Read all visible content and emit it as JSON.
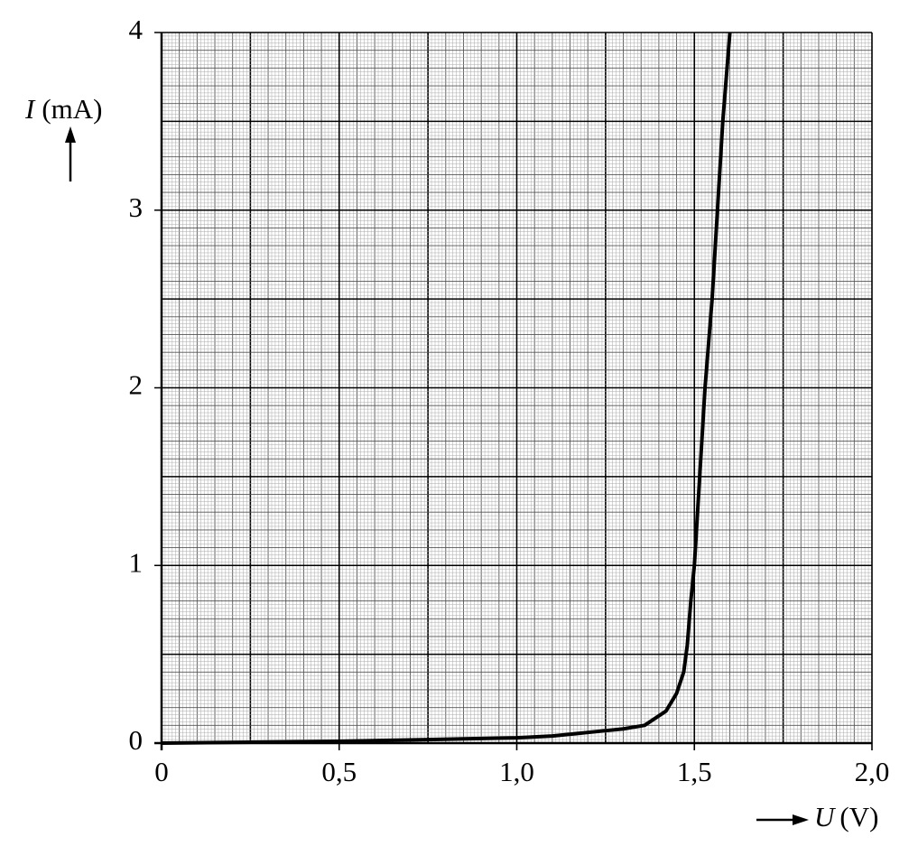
{
  "chart_data": {
    "type": "line",
    "y_label": {
      "symbol": "I",
      "unit": "(mA)"
    },
    "x_label": {
      "symbol": "U",
      "unit": "(V)"
    },
    "x": [
      0,
      0.5,
      0.75,
      1.0,
      1.1,
      1.2,
      1.3,
      1.36,
      1.42,
      1.45,
      1.47,
      1.48,
      1.49,
      1.5,
      1.53,
      1.55,
      1.58,
      1.6
    ],
    "series": [
      {
        "color": "#000000",
        "values": [
          0,
          0.01,
          0.02,
          0.03,
          0.04,
          0.06,
          0.08,
          0.1,
          0.18,
          0.28,
          0.4,
          0.55,
          0.8,
          1.0,
          2.0,
          2.5,
          3.5,
          4.0
        ]
      }
    ],
    "xlim": [
      0,
      2.0
    ],
    "ylim": [
      0,
      4
    ],
    "xticks": [
      0,
      {
        "value": 0.5,
        "label": "0,5"
      },
      {
        "value": 1.0,
        "label": "1,0"
      },
      {
        "value": 1.5,
        "label": "1,5"
      },
      {
        "value": 2.0,
        "label": "2,0"
      }
    ],
    "yticks": [
      0,
      1,
      2,
      3,
      4
    ],
    "grid": true
  }
}
